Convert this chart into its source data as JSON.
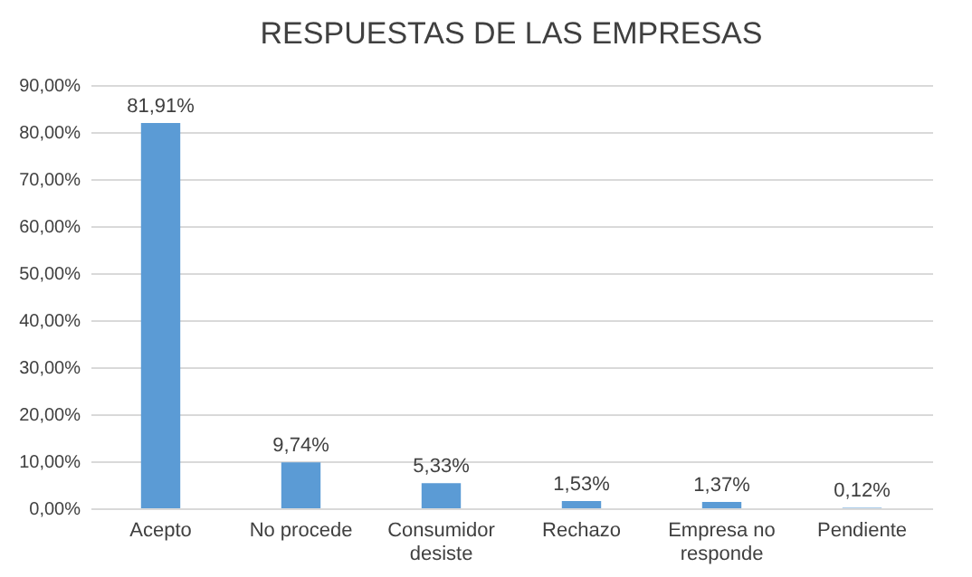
{
  "chart_data": {
    "type": "bar",
    "title": "RESPUESTAS DE LAS EMPRESAS",
    "categories": [
      "Acepto",
      "No procede",
      "Consumidor desiste",
      "Rechazo",
      "Empresa no responde",
      "Pendiente"
    ],
    "values": [
      81.91,
      9.74,
      5.33,
      1.53,
      1.37,
      0.12
    ],
    "value_labels": [
      "81,91%",
      "9,74%",
      "5,33%",
      "1,53%",
      "1,37%",
      "0,12%"
    ],
    "color": "#5b9bd5",
    "ylim": [
      0,
      90
    ],
    "yticks": [
      {
        "value": 0,
        "label": "0,00%"
      },
      {
        "value": 10,
        "label": "10,00%"
      },
      {
        "value": 20,
        "label": "20,00%"
      },
      {
        "value": 30,
        "label": "30,00%"
      },
      {
        "value": 40,
        "label": "40,00%"
      },
      {
        "value": 50,
        "label": "50,00%"
      },
      {
        "value": 60,
        "label": "60,00%"
      },
      {
        "value": 70,
        "label": "70,00%"
      },
      {
        "value": 80,
        "label": "80,00%"
      },
      {
        "value": 90,
        "label": "90,00%"
      }
    ],
    "grid": "y"
  }
}
